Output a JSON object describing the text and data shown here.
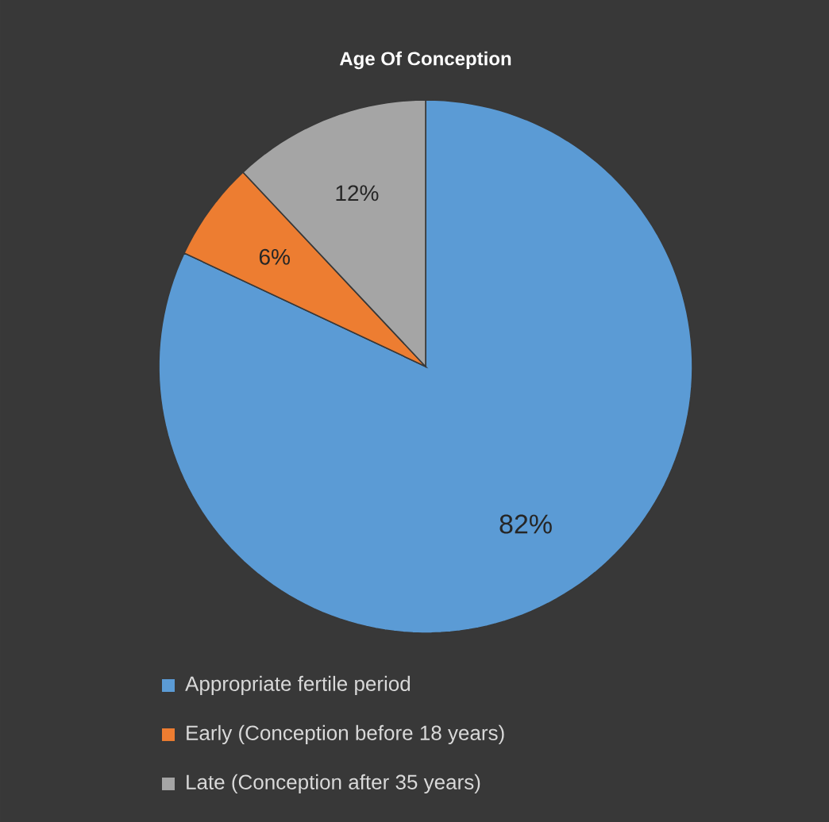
{
  "chart_data": {
    "type": "pie",
    "title": "Age Of Conception",
    "categories": [
      "Appropriate fertile period",
      "Early  (Conception before 18 years)",
      "Late (Conception after 35 years)"
    ],
    "values": [
      82,
      6,
      12
    ],
    "colors": [
      "#5b9bd5",
      "#ed7d31",
      "#a5a5a5"
    ],
    "value_labels": [
      "82%",
      "6%",
      "12%"
    ],
    "legend": "bottom"
  }
}
